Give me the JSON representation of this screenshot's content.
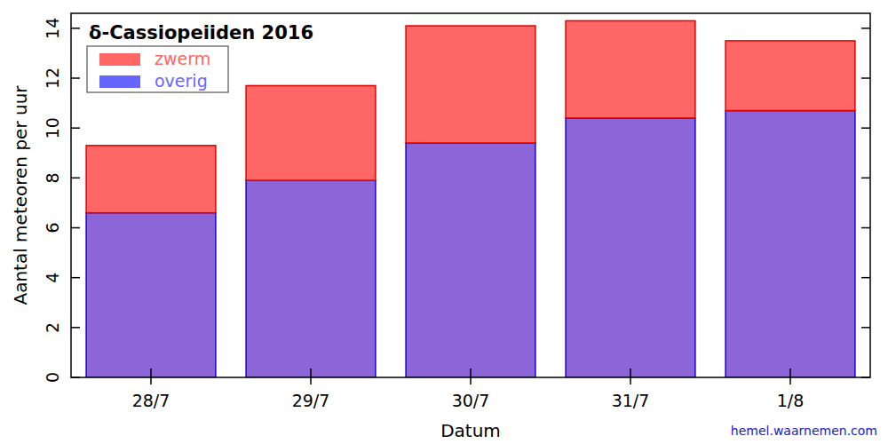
{
  "chart_data": {
    "type": "bar",
    "title": "δ-Cassiopeiiden 2016",
    "x_label": "Datum",
    "y_label": "Aantal meteoren per uur",
    "source": "hemel.waarnemen.com",
    "categories": [
      "28/7",
      "29/7",
      "30/7",
      "31/7",
      "1/8"
    ],
    "series": [
      {
        "name": "overig",
        "color": "#6666ff",
        "values": [
          6.6,
          7.9,
          9.4,
          10.4,
          10.7
        ]
      },
      {
        "name": "zwerm",
        "color": "#ff6666",
        "values": [
          2.7,
          3.8,
          4.7,
          3.9,
          2.8
        ]
      }
    ],
    "stacked": true,
    "legend": "upper left",
    "ylim": [
      0,
      14.6
    ],
    "yticks": [
      0,
      2,
      4,
      6,
      8,
      10,
      12,
      14
    ],
    "grid": false
  }
}
